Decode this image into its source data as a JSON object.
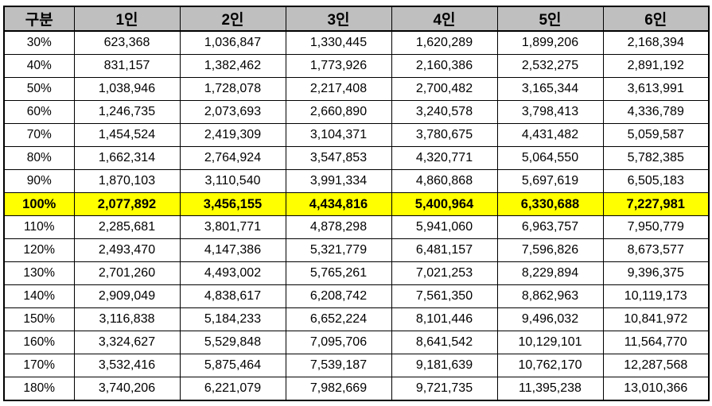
{
  "table": {
    "headers": [
      "구분",
      "1인",
      "2인",
      "3인",
      "4인",
      "5인",
      "6인"
    ],
    "highlight_row_label": "100%",
    "rows": [
      [
        "30%",
        "623,368",
        "1,036,847",
        "1,330,445",
        "1,620,289",
        "1,899,206",
        "2,168,394"
      ],
      [
        "40%",
        "831,157",
        "1,382,462",
        "1,773,926",
        "2,160,386",
        "2,532,275",
        "2,891,192"
      ],
      [
        "50%",
        "1,038,946",
        "1,728,078",
        "2,217,408",
        "2,700,482",
        "3,165,344",
        "3,613,991"
      ],
      [
        "60%",
        "1,246,735",
        "2,073,693",
        "2,660,890",
        "3,240,578",
        "3,798,413",
        "4,336,789"
      ],
      [
        "70%",
        "1,454,524",
        "2,419,309",
        "3,104,371",
        "3,780,675",
        "4,431,482",
        "5,059,587"
      ],
      [
        "80%",
        "1,662,314",
        "2,764,924",
        "3,547,853",
        "4,320,771",
        "5,064,550",
        "5,782,385"
      ],
      [
        "90%",
        "1,870,103",
        "3,110,540",
        "3,991,334",
        "4,860,868",
        "5,697,619",
        "6,505,183"
      ],
      [
        "100%",
        "2,077,892",
        "3,456,155",
        "4,434,816",
        "5,400,964",
        "6,330,688",
        "7,227,981"
      ],
      [
        "110%",
        "2,285,681",
        "3,801,771",
        "4,878,298",
        "5,941,060",
        "6,963,757",
        "7,950,779"
      ],
      [
        "120%",
        "2,493,470",
        "4,147,386",
        "5,321,779",
        "6,481,157",
        "7,596,826",
        "8,673,577"
      ],
      [
        "130%",
        "2,701,260",
        "4,493,002",
        "5,765,261",
        "7,021,253",
        "8,229,894",
        "9,396,375"
      ],
      [
        "140%",
        "2,909,049",
        "4,838,617",
        "6,208,742",
        "7,561,350",
        "8,862,963",
        "10,119,173"
      ],
      [
        "150%",
        "3,116,838",
        "5,184,233",
        "6,652,224",
        "8,101,446",
        "9,496,032",
        "10,841,972"
      ],
      [
        "160%",
        "3,324,627",
        "5,529,848",
        "7,095,706",
        "8,641,542",
        "10,129,101",
        "11,564,770"
      ],
      [
        "170%",
        "3,532,416",
        "5,875,464",
        "7,539,187",
        "9,181,639",
        "10,762,170",
        "12,287,568"
      ],
      [
        "180%",
        "3,740,206",
        "6,221,079",
        "7,982,669",
        "9,721,735",
        "11,395,238",
        "13,010,366"
      ]
    ],
    "colors": {
      "header_bg": "#bfbfbf",
      "highlight_bg": "#ffff00",
      "border": "#000000"
    }
  }
}
